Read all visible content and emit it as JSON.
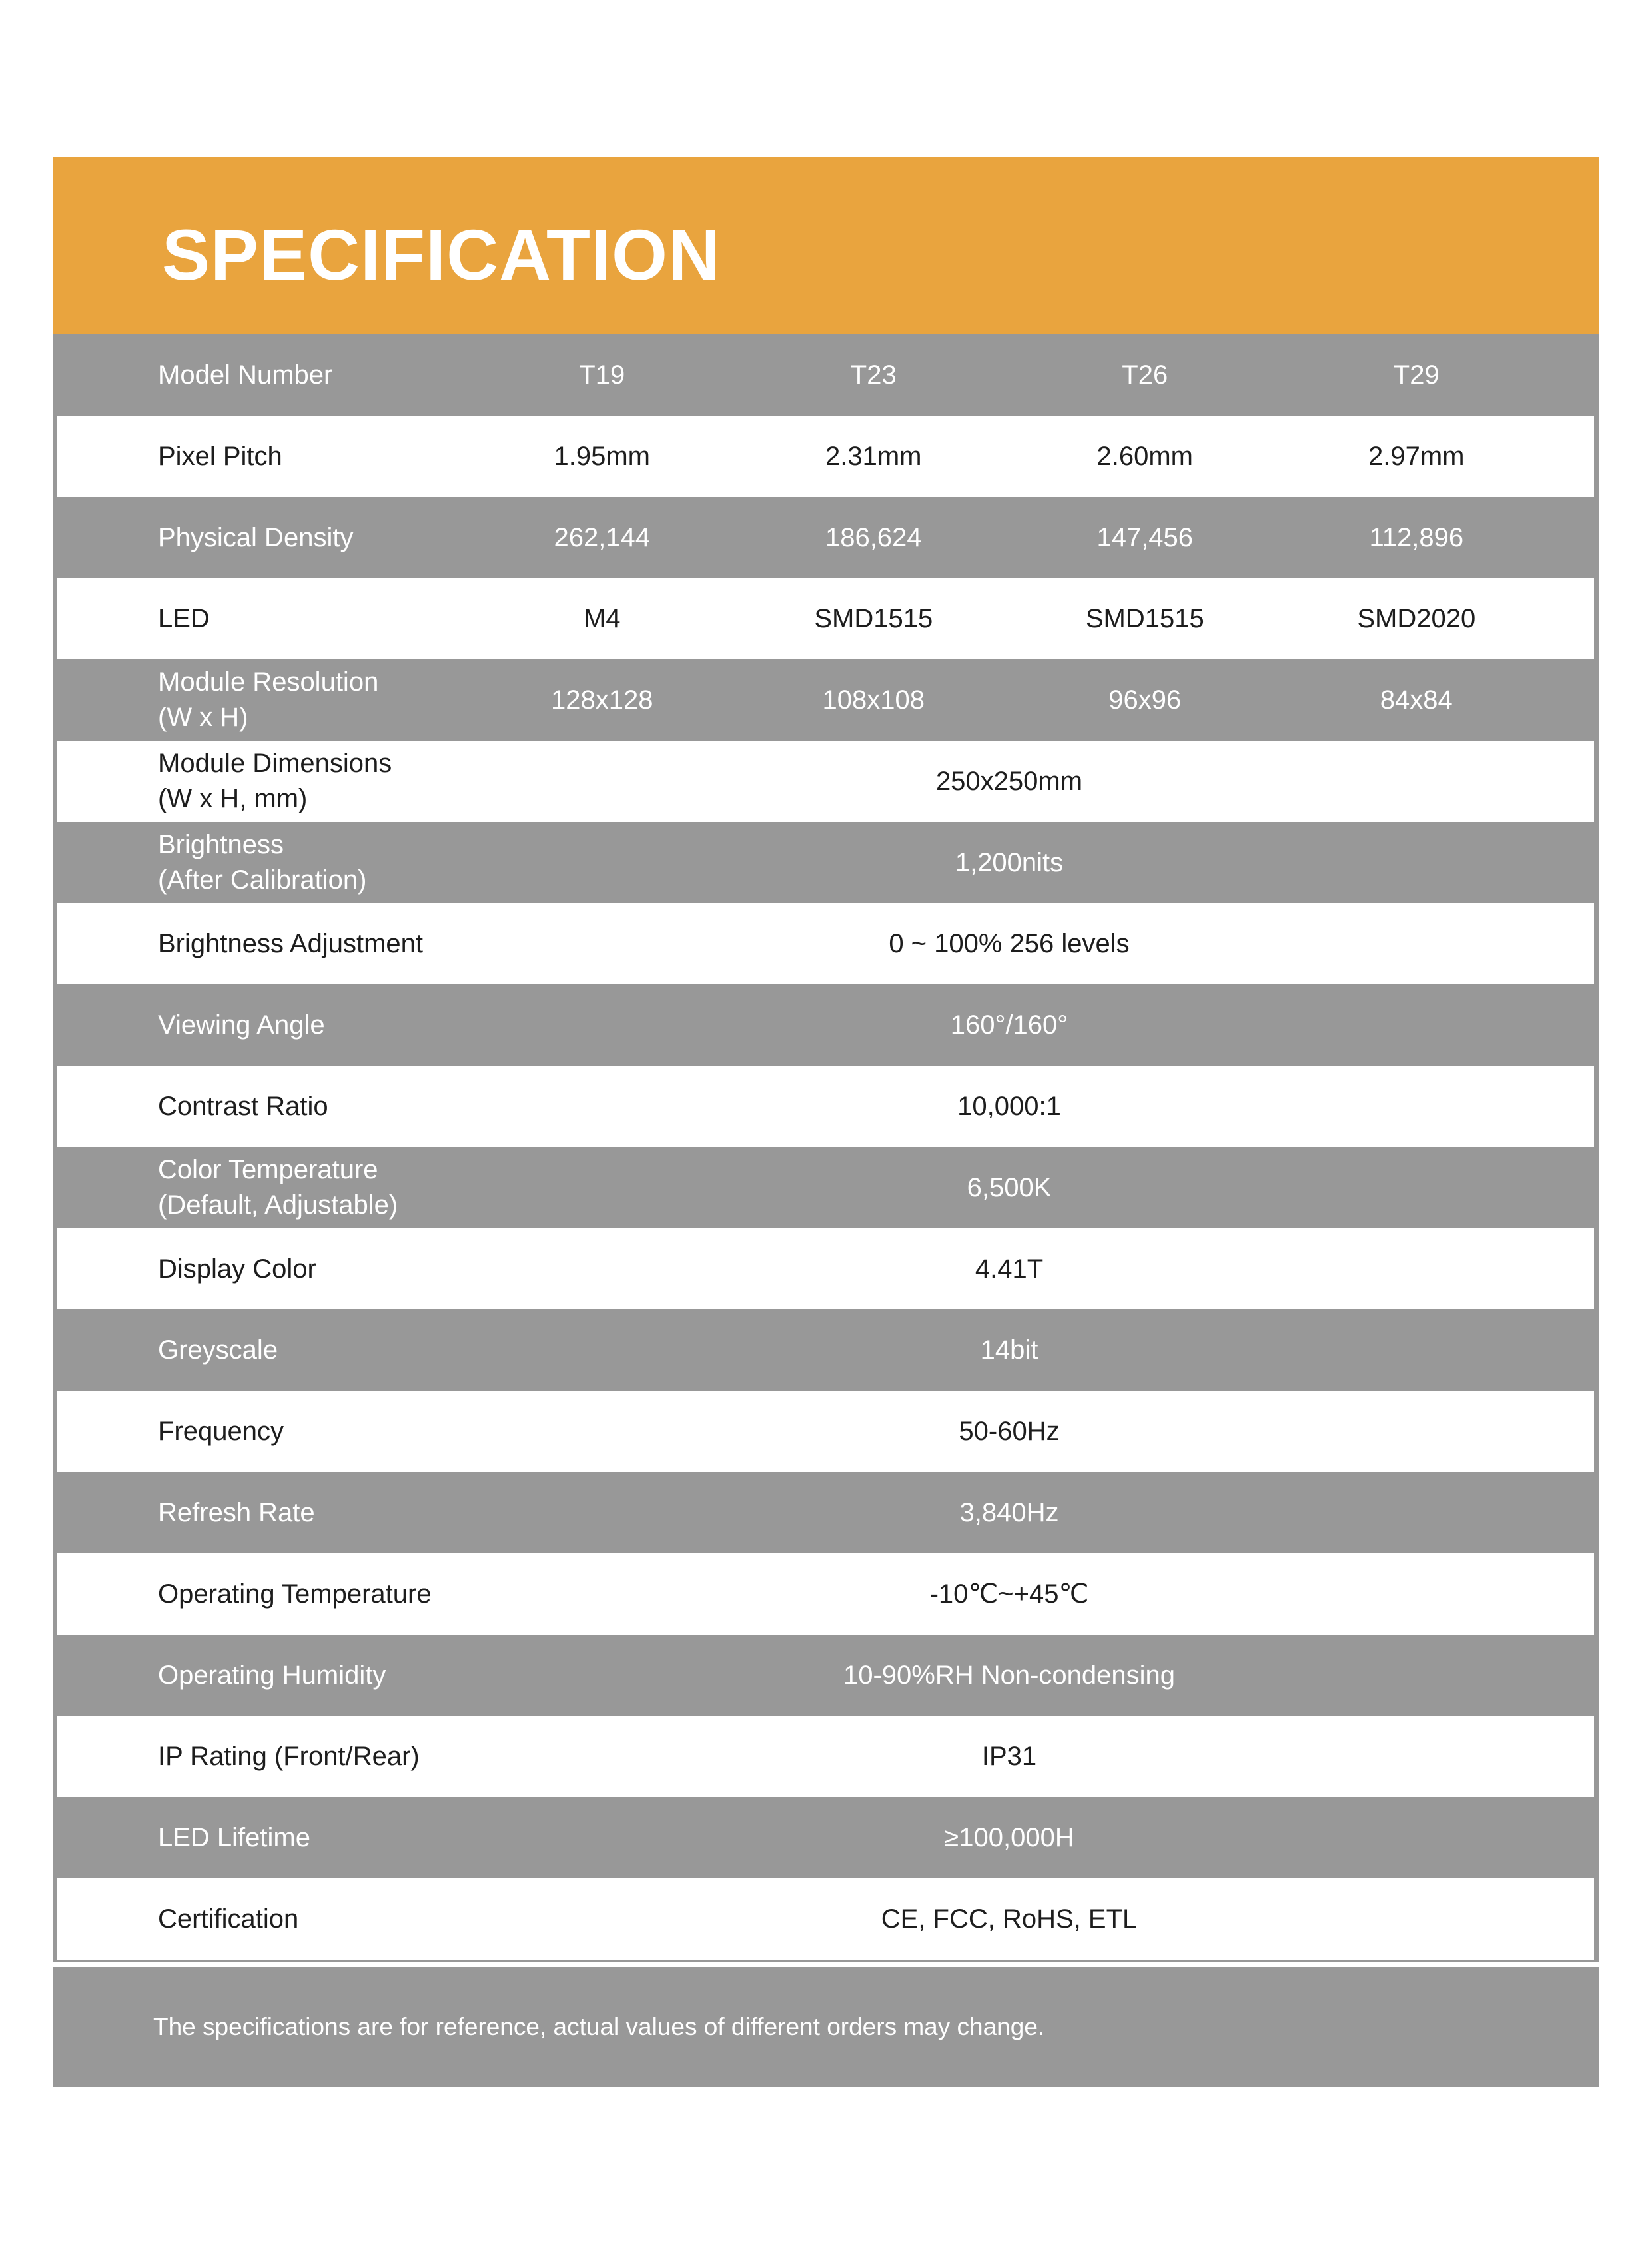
{
  "page": {
    "background_color": "#ffffff"
  },
  "banner": {
    "title": "SPECIFICATION",
    "bg_color": "#E9A43E",
    "text_color": "#ffffff"
  },
  "table": {
    "gray_color": "#989898",
    "white_text_color": "#ffffff",
    "dark_text_color": "#1d1d1d",
    "rows": [
      {
        "shade": "gray",
        "header": true,
        "label": "Model Number",
        "values": [
          "T19",
          "T23",
          "T26",
          "T29"
        ]
      },
      {
        "shade": "white",
        "label": "Pixel Pitch",
        "values": [
          "1.95mm",
          "2.31mm",
          "2.60mm",
          "2.97mm"
        ]
      },
      {
        "shade": "gray",
        "label": "Physical Density",
        "values": [
          "262,144",
          "186,624",
          "147,456",
          "112,896"
        ]
      },
      {
        "shade": "white",
        "label": "LED",
        "values": [
          "M4",
          "SMD1515",
          "SMD1515",
          "SMD2020"
        ]
      },
      {
        "shade": "gray",
        "label": "Module Resolution",
        "label_line2": "(W x H)",
        "values": [
          "128x128",
          "108x108",
          "96x96",
          "84x84"
        ]
      },
      {
        "shade": "white",
        "label": "Module Dimensions",
        "label_line2": "(W x H, mm)",
        "value": "250x250mm"
      },
      {
        "shade": "gray",
        "label": "Brightness",
        "label_line2": "(After Calibration)",
        "value": "1,200nits"
      },
      {
        "shade": "white",
        "label": "Brightness Adjustment",
        "value": "0 ~ 100% 256 levels"
      },
      {
        "shade": "gray",
        "label": "Viewing Angle",
        "value": "160°/160°"
      },
      {
        "shade": "white",
        "label": "Contrast Ratio",
        "value": "10,000:1"
      },
      {
        "shade": "gray",
        "label": "Color Temperature",
        "label_line2": "(Default, Adjustable)",
        "value": "6,500K"
      },
      {
        "shade": "white",
        "label": "Display Color",
        "value": "4.41T"
      },
      {
        "shade": "gray",
        "label": "Greyscale",
        "value": "14bit"
      },
      {
        "shade": "white",
        "label": "Frequency",
        "value": "50-60Hz"
      },
      {
        "shade": "gray",
        "label": "Refresh Rate",
        "value": "3,840Hz"
      },
      {
        "shade": "white",
        "label": "Operating Temperature",
        "value": "-10℃~+45℃"
      },
      {
        "shade": "gray",
        "label": "Operating Humidity",
        "value": "10-90%RH Non-condensing"
      },
      {
        "shade": "white",
        "label": "IP Rating (Front/Rear)",
        "value": "IP31"
      },
      {
        "shade": "gray",
        "label": "LED Lifetime",
        "value": "≥100,000H"
      },
      {
        "shade": "white",
        "label": "Certification",
        "value": "CE, FCC, RoHS, ETL"
      }
    ]
  },
  "footer": {
    "note": "The specifications are for reference, actual values of different orders may change.",
    "bg_color": "#989898"
  }
}
